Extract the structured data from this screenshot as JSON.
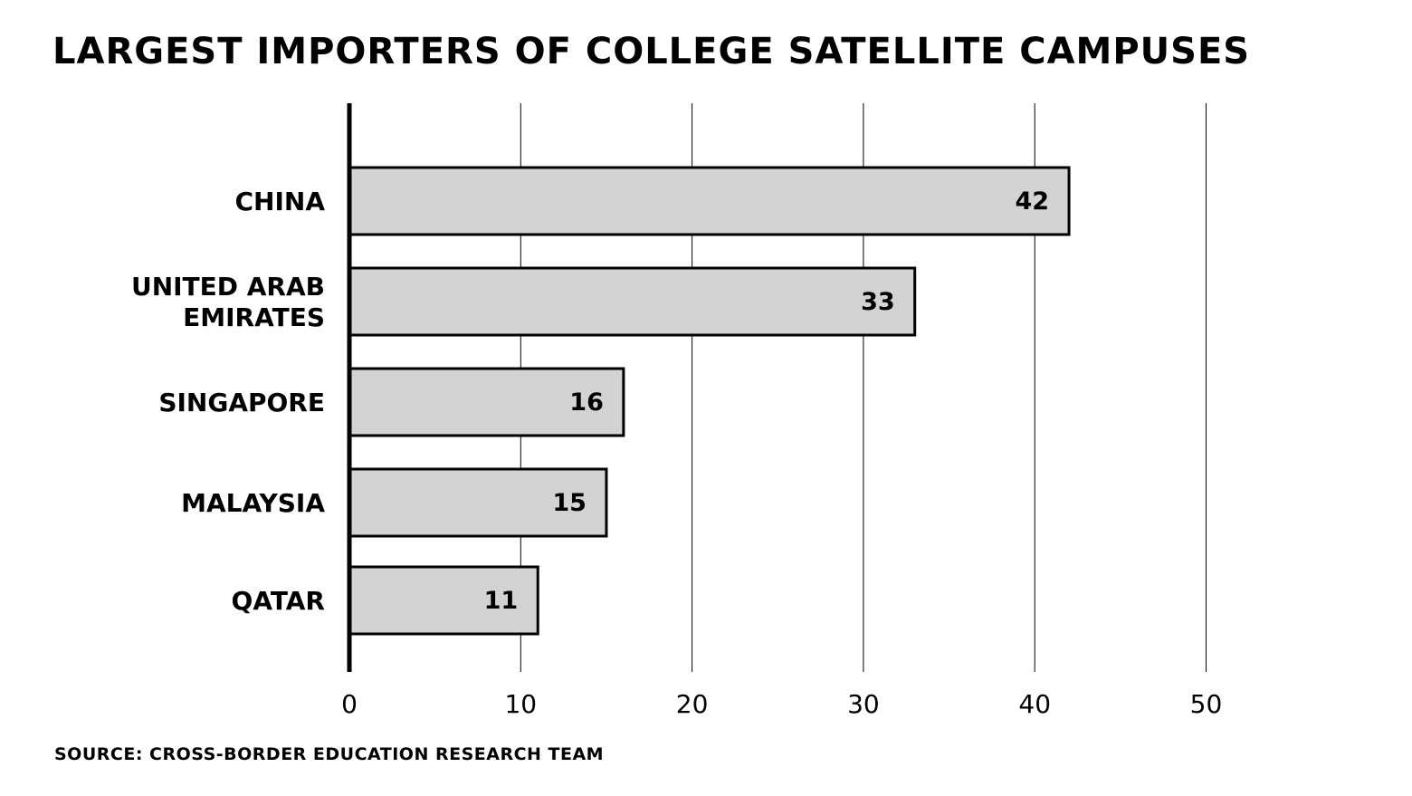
{
  "chart_data": {
    "type": "bar",
    "orientation": "horizontal",
    "title": "LARGEST IMPORTERS OF COLLEGE SATELLITE CAMPUSES",
    "source": "SOURCE: CROSS-BORDER EDUCATION RESEARCH TEAM",
    "categories": [
      [
        "CHINA"
      ],
      [
        "UNITED ARAB",
        "EMIRATES"
      ],
      [
        "SINGAPORE"
      ],
      [
        "MALAYSIA"
      ],
      [
        "QATAR"
      ]
    ],
    "values": [
      42,
      33,
      16,
      15,
      11
    ],
    "xlabel": "",
    "ylabel": "",
    "xlim": [
      0,
      50
    ],
    "xticks": [
      0,
      10,
      20,
      30,
      40,
      50
    ],
    "grid": "vertical",
    "legend": "none",
    "colors": {
      "bar_fill": "#d3d3d3",
      "bar_stroke": "#000000",
      "grid": "#000000",
      "text": "#000000"
    }
  }
}
